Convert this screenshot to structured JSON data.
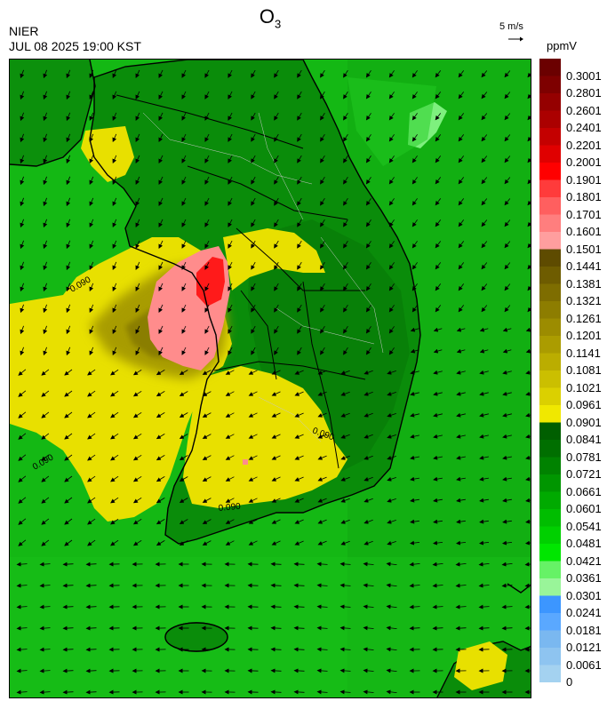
{
  "header": {
    "title_main": "O",
    "title_sub": "3",
    "agency": "NIER",
    "datetime": "JUL 08 2025 19:00 KST",
    "wind_reference": "5 m/s",
    "unit": "ppmV"
  },
  "colorbar": {
    "labels": [
      "0.3001",
      "0.2801",
      "0.2601",
      "0.2401",
      "0.2201",
      "0.2001",
      "0.1901",
      "0.1801",
      "0.1701",
      "0.1601",
      "0.1501",
      "0.1441",
      "0.1381",
      "0.1321",
      "0.1261",
      "0.1201",
      "0.1141",
      "0.1081",
      "0.1021",
      "0.0961",
      "0.0901",
      "0.0841",
      "0.0781",
      "0.0721",
      "0.0661",
      "0.0601",
      "0.0541",
      "0.0481",
      "0.0421",
      "0.0361",
      "0.0301",
      "0.0241",
      "0.0181",
      "0.0121",
      "0.0061",
      "0"
    ],
    "colors": [
      "#6b0000",
      "#7e0000",
      "#950000",
      "#ab0000",
      "#c40000",
      "#e00000",
      "#ff0000",
      "#ff3b3b",
      "#ff5f5f",
      "#ff7e7e",
      "#ff9e9e",
      "#5e4b00",
      "#6e5c00",
      "#7e6d00",
      "#8d7d00",
      "#9c8c00",
      "#ab9c00",
      "#bbad00",
      "#cbbf00",
      "#dbd000",
      "#f0e800",
      "#005f00",
      "#006f00",
      "#008200",
      "#009600",
      "#00aa00",
      "#00bd00",
      "#00d000",
      "#00e600",
      "#66f266",
      "#99f599",
      "#3c96ff",
      "#5aa8ff",
      "#7ab8f0",
      "#8ec4f0",
      "#a4d2f0"
    ]
  },
  "map": {
    "contour_label": "0.090",
    "colors": {
      "sea_green": "#14b814",
      "land_green": "#0a8c0a",
      "dark_green": "#066e06",
      "yellow": "#e8e000",
      "olive": "#a89c00",
      "dark_olive": "#8a7e00",
      "pink": "#ff8c8c",
      "red": "#ff1a1a",
      "light_green": "#7ef07e",
      "coast": "#000000",
      "admin_line": "#c8c8c8"
    }
  }
}
